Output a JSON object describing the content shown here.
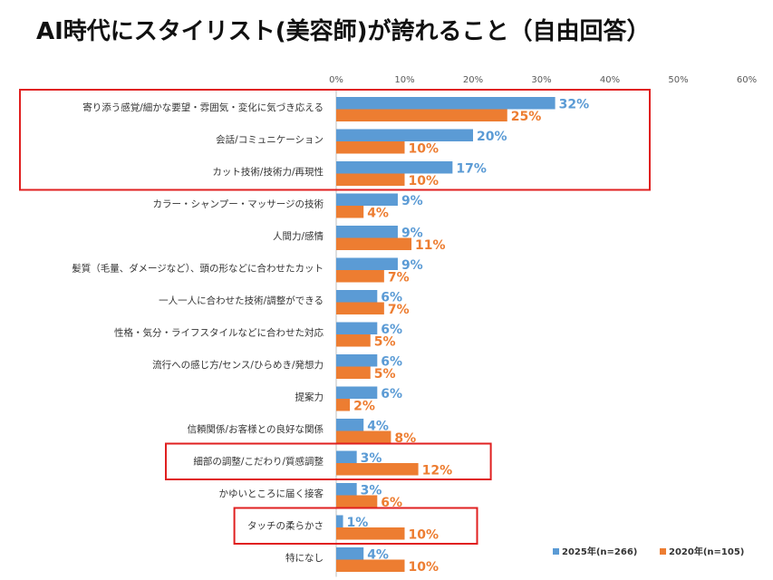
{
  "title": "AI時代にスタイリスト(美容師)が誇れること（自由回答）",
  "chart_data": {
    "type": "bar",
    "orientation": "horizontal",
    "title": "AI時代にスタイリスト(美容師)が誇れること（自由回答）",
    "xlim": [
      0,
      60
    ],
    "x_ticks": [
      0,
      10,
      20,
      30,
      40,
      50,
      60
    ],
    "tick_suffix": "%",
    "grid": false,
    "legend_position": "bottom-right",
    "categories": [
      "寄り添う感覚/細かな要望・雰囲気・変化に気づき応える",
      "会話/コミュニケーション",
      "カット技術/技術力/再現性",
      "カラー・シャンプー・マッサージの技術",
      "人間力/感情",
      "髪質（毛量、ダメージなど）、頭の形などに合わせたカット",
      "一人一人に合わせた技術/調整ができる",
      "性格・気分・ライフスタイルなどに合わせた対応",
      "流行への感じ方/センス/ひらめき/発想力",
      "提案力",
      "信頼関係/お客様との良好な関係",
      "細部の調整/こだわり/質感調整",
      "かゆいところに届く接客",
      "タッチの柔らかさ",
      "特になし"
    ],
    "series": [
      {
        "name": "2025年(n=266)",
        "color": "#5b9bd5",
        "values": [
          32,
          20,
          17,
          9,
          9,
          9,
          6,
          6,
          6,
          6,
          4,
          3,
          3,
          1,
          4
        ]
      },
      {
        "name": "2020年(n=105)",
        "color": "#ed7d31",
        "values": [
          25,
          10,
          10,
          4,
          11,
          7,
          7,
          5,
          5,
          2,
          8,
          12,
          6,
          10,
          10
        ]
      }
    ],
    "highlight_color": "#e02020",
    "highlight_groups": [
      [
        0,
        2
      ],
      [
        11,
        11
      ],
      [
        13,
        13
      ]
    ]
  }
}
